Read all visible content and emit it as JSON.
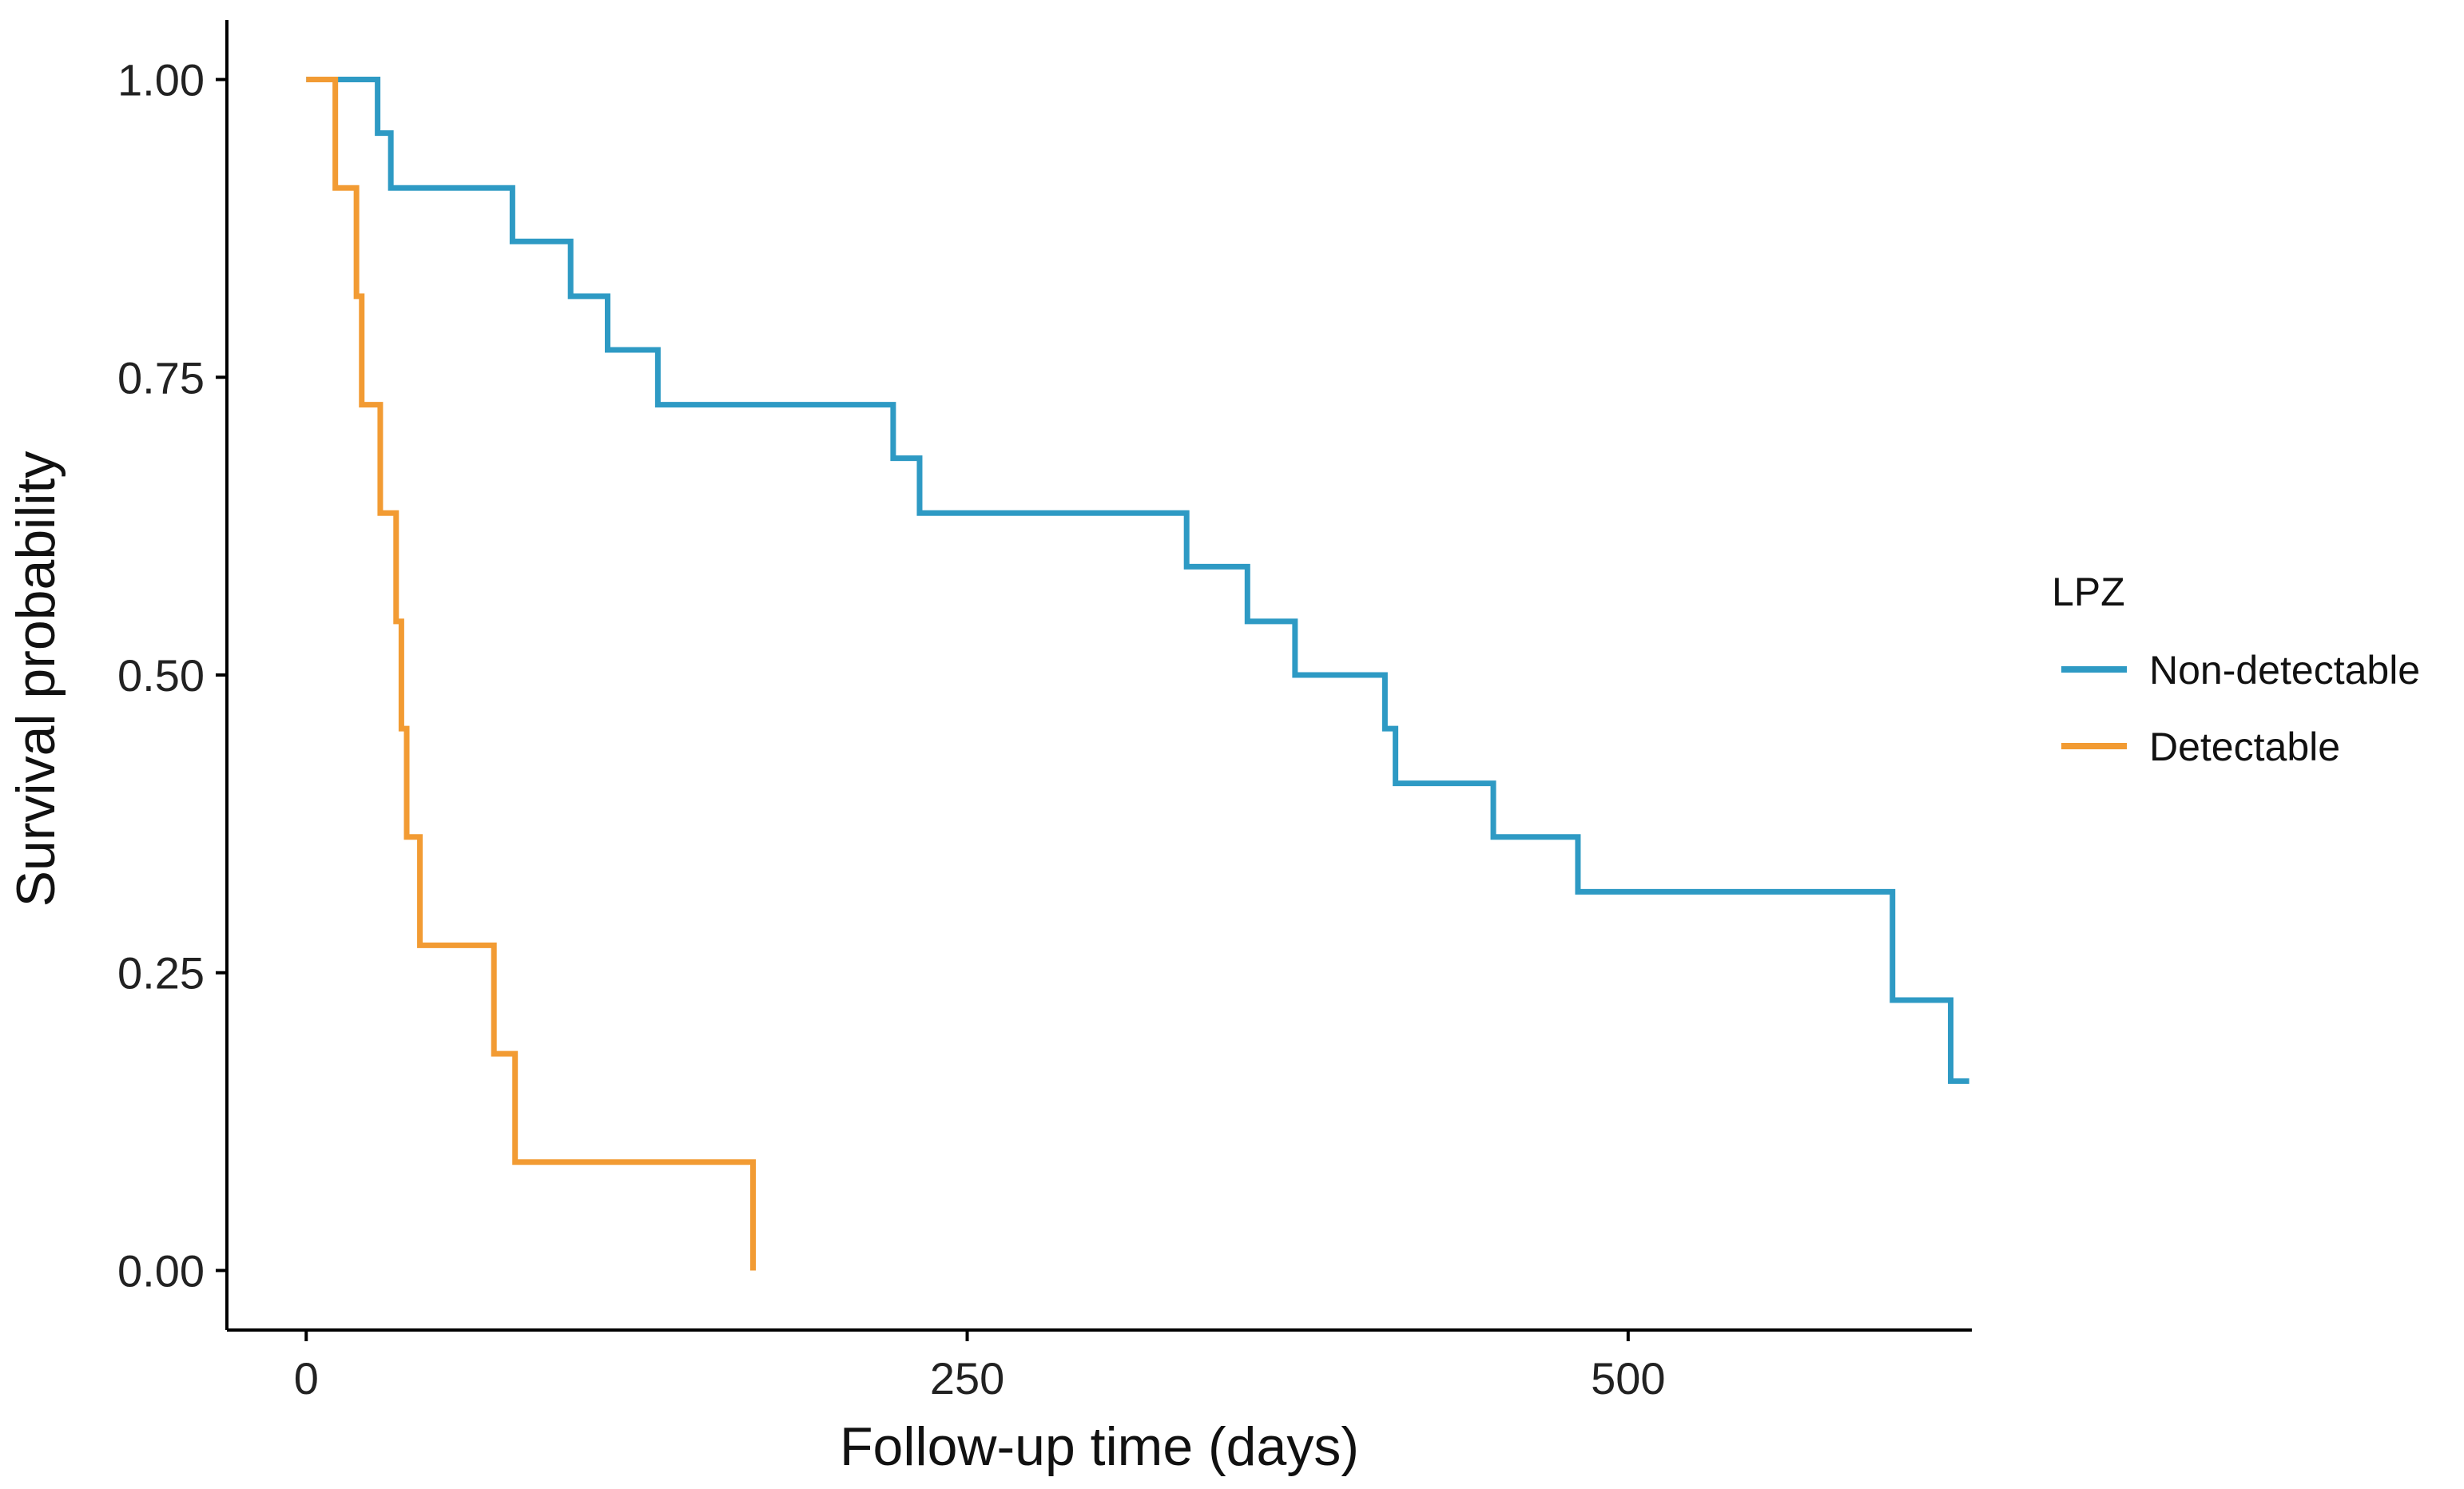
{
  "chart_data": {
    "type": "line",
    "subtype": "kaplan-meier-step",
    "title": "",
    "xlabel": "Follow-up time (days)",
    "ylabel": "Survival probability",
    "xlim": [
      -30,
      630
    ],
    "ylim": [
      -0.05,
      1.05
    ],
    "x_ticks": [
      0,
      250,
      500
    ],
    "x_tick_labels": [
      "0",
      "250",
      "500"
    ],
    "y_ticks": [
      0,
      0.25,
      0.5,
      0.75,
      1.0
    ],
    "y_tick_labels": [
      "0.00",
      "0.25",
      "0.50",
      "0.75",
      "1.00"
    ],
    "grid": false,
    "legend": {
      "title": "LPZ",
      "placement": "right"
    },
    "series": [
      {
        "name": "Non-detectable",
        "color": "#2e9ac4",
        "points": [
          [
            0,
            1.0
          ],
          [
            27,
            0.955
          ],
          [
            32,
            0.909
          ],
          [
            78,
            0.864
          ],
          [
            100,
            0.818
          ],
          [
            114,
            0.773
          ],
          [
            133,
            0.727
          ],
          [
            222,
            0.682
          ],
          [
            232,
            0.636
          ],
          [
            333,
            0.591
          ],
          [
            356,
            0.545
          ],
          [
            374,
            0.5
          ],
          [
            408,
            0.455
          ],
          [
            412,
            0.409
          ],
          [
            449,
            0.364
          ],
          [
            481,
            0.318
          ],
          [
            600,
            0.227
          ],
          [
            622,
            0.159
          ]
        ],
        "end_x": 629
      },
      {
        "name": "Detectable",
        "color": "#f29b33",
        "points": [
          [
            0,
            1.0
          ],
          [
            11,
            0.909
          ],
          [
            19,
            0.818
          ],
          [
            21,
            0.727
          ],
          [
            28,
            0.636
          ],
          [
            34,
            0.545
          ],
          [
            36,
            0.455
          ],
          [
            38,
            0.364
          ],
          [
            43,
            0.273
          ],
          [
            71,
            0.182
          ],
          [
            79,
            0.091
          ],
          [
            169,
            0.0
          ]
        ],
        "end_x": 169
      }
    ]
  }
}
